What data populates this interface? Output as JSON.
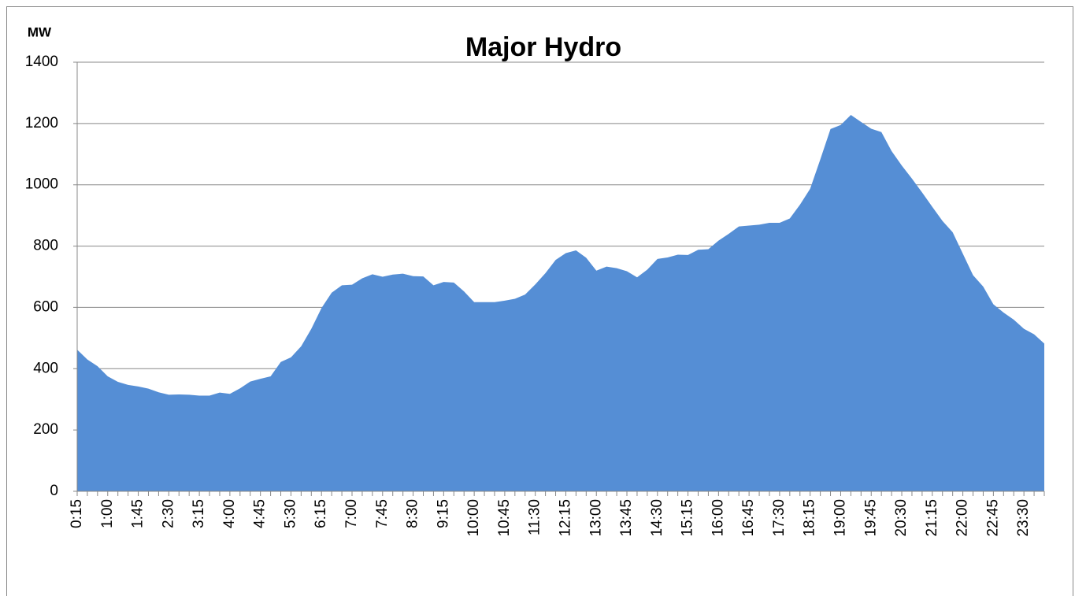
{
  "chart_data": {
    "type": "area",
    "title": "Major Hydro",
    "y_label": "MW",
    "categories": [
      "0:15",
      null,
      null,
      "1:00",
      null,
      null,
      "1:45",
      null,
      null,
      "2:30",
      null,
      null,
      "3:15",
      null,
      null,
      "4:00",
      null,
      null,
      "4:45",
      null,
      null,
      "5:30",
      null,
      null,
      "6:15",
      null,
      null,
      "7:00",
      null,
      null,
      "7:45",
      null,
      null,
      "8:30",
      null,
      null,
      "9:15",
      null,
      null,
      "10:00",
      null,
      null,
      "10:45",
      null,
      null,
      "11:30",
      null,
      null,
      "12:15",
      null,
      null,
      "13:00",
      null,
      null,
      "13:45",
      null,
      null,
      "14:30",
      null,
      null,
      "15:15",
      null,
      null,
      "16:00",
      null,
      null,
      "16:45",
      null,
      null,
      "17:30",
      null,
      null,
      "18:15",
      null,
      null,
      "19:00",
      null,
      null,
      "19:45",
      null,
      null,
      "20:30",
      null,
      null,
      "21:15",
      null,
      null,
      "22:00",
      null,
      null,
      "22:45",
      null,
      null,
      "23:30",
      null,
      null
    ],
    "series": [
      {
        "color": "#558ed5",
        "values": [
          462,
          430,
          408,
          375,
          357,
          347,
          342,
          335,
          323,
          315,
          316,
          315,
          312,
          312,
          322,
          318,
          336,
          358,
          367,
          375,
          422,
          437,
          473,
          530,
          598,
          648,
          672,
          674,
          695,
          708,
          700,
          707,
          710,
          702,
          701,
          672,
          683,
          681,
          652,
          617,
          617,
          617,
          622,
          628,
          642,
          675,
          712,
          755,
          777,
          786,
          762,
          720,
          733,
          728,
          718,
          698,
          723,
          758,
          763,
          772,
          771,
          788,
          790,
          818,
          840,
          864,
          867,
          870,
          876,
          876,
          890,
          935,
          987,
          1083,
          1182,
          1195,
          1228,
          1205,
          1183,
          1172,
          1110,
          1063,
          1020,
          975,
          928,
          882,
          845,
          775,
          705,
          668,
          610,
          583,
          560,
          530,
          512,
          482
        ]
      }
    ],
    "ylim": [
      0,
      1400
    ],
    "yticks": [
      0,
      200,
      400,
      600,
      800,
      1000,
      1200,
      1400
    ],
    "grid": true
  }
}
